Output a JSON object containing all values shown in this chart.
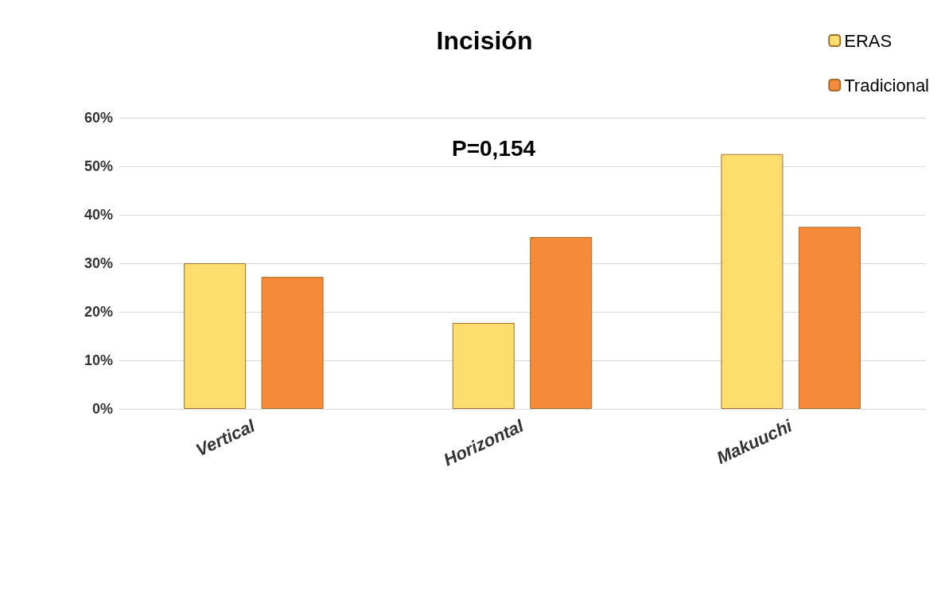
{
  "chart_data": {
    "type": "bar",
    "title": "Incisión",
    "annotations": [
      "P=0,154"
    ],
    "categories": [
      "Vertical",
      "Horizontal",
      "Makuuchi"
    ],
    "series": [
      {
        "name": "ERAS",
        "color": "#fddd6d",
        "values": [
          30,
          17.7,
          52.5
        ]
      },
      {
        "name": "Tradicional",
        "color": "#f68a3b",
        "values": [
          27.2,
          35.4,
          37.5
        ]
      }
    ],
    "ylim": [
      0,
      60
    ],
    "yticks": [
      {
        "value": 0,
        "label": "0%"
      },
      {
        "value": 10,
        "label": "10%"
      },
      {
        "value": 20,
        "label": "20%"
      },
      {
        "value": 30,
        "label": "30%"
      },
      {
        "value": 40,
        "label": "40%"
      },
      {
        "value": 50,
        "label": "50%"
      },
      {
        "value": 60,
        "label": "60%"
      }
    ],
    "grid": "y",
    "legend": "top right"
  }
}
